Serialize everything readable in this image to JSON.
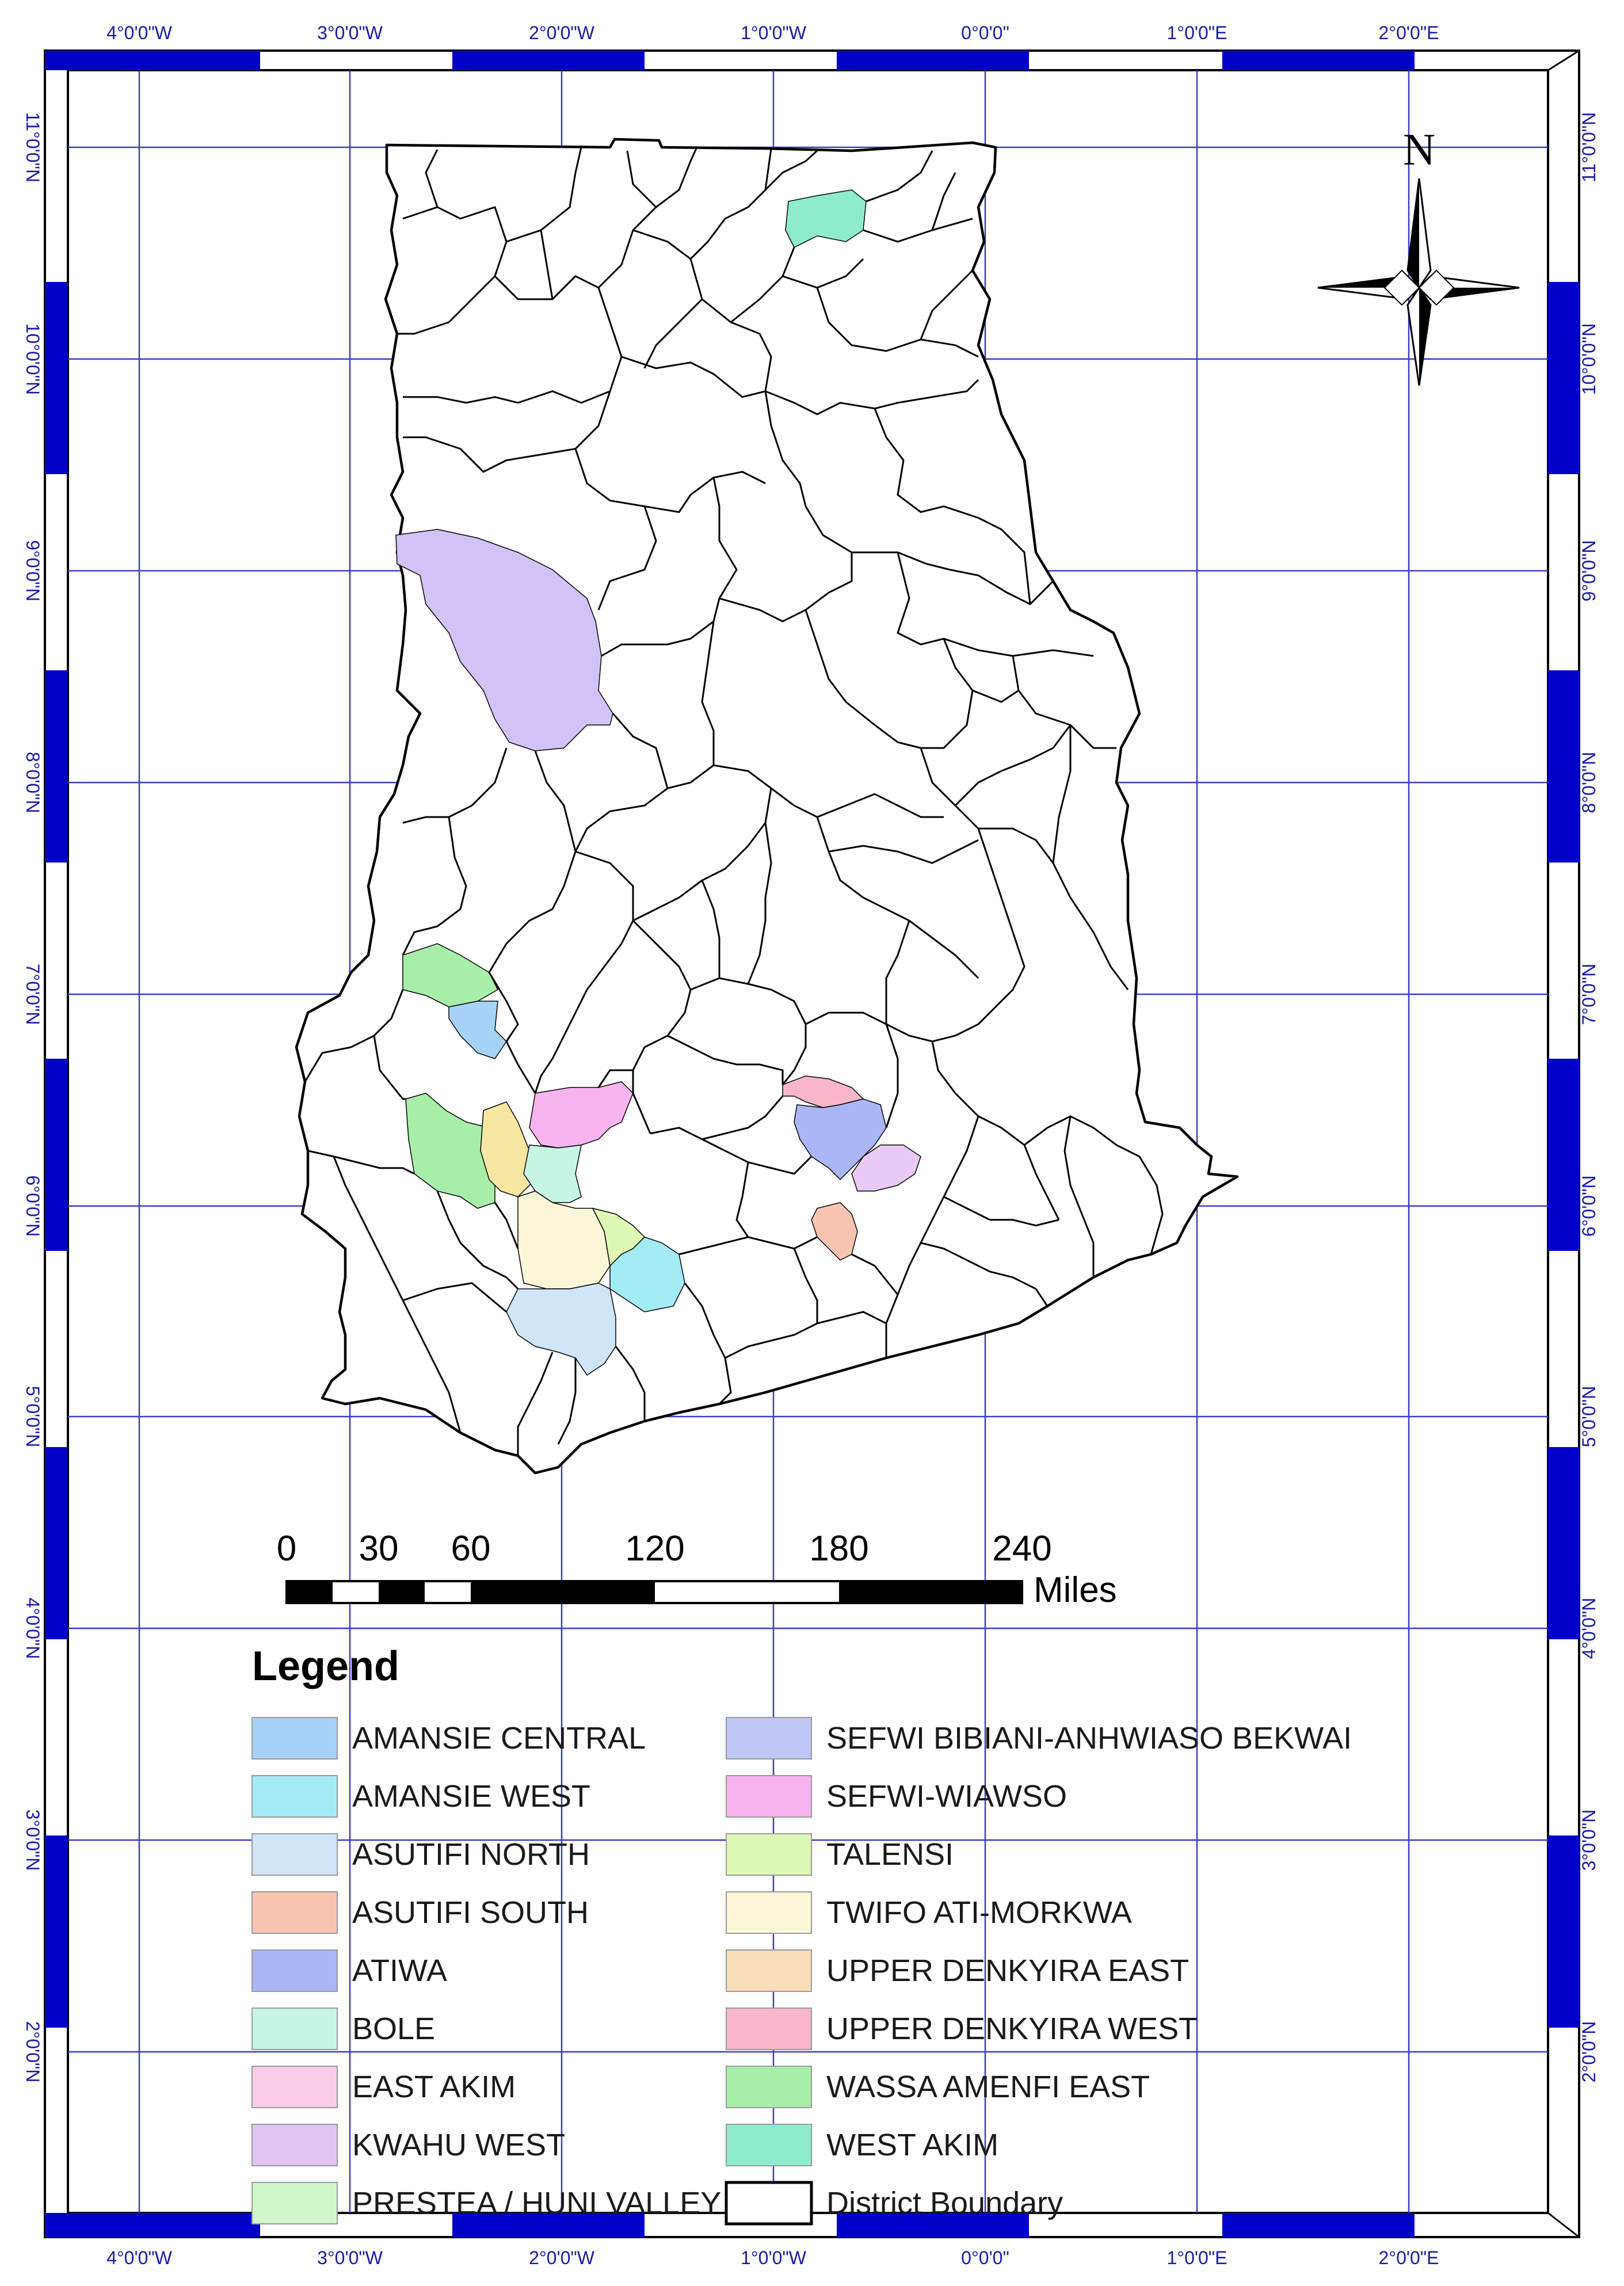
{
  "map": {
    "top_labels": [
      "4°0'0\"W",
      "3°0'0\"W",
      "2°0'0\"W",
      "1°0'0\"W",
      "0°0'0\"",
      "1°0'0\"E",
      "2°0'0\"E"
    ],
    "bottom_labels": [
      "4°0'0\"W",
      "3°0'0\"W",
      "2°0'0\"W",
      "1°0'0\"W",
      "0°0'0\"",
      "1°0'0\"E",
      "2°0'0\"E"
    ],
    "right_labels": [
      "11°0'0\"N",
      "10°0'0\"N",
      "9°0'0\"N",
      "8°0'0\"N",
      "7°0'0\"N",
      "6°0'0\"N",
      "5°0'0\"N",
      "4°0'0\"N",
      "3°0'0\"N",
      "2°0'0\"N"
    ],
    "left_labels": [
      "11°0'0\"N",
      "10°0'0\"N",
      "9°0'0\"N",
      "8°0'0\"N",
      "7°0'0\"N",
      "6°0'0\"N",
      "5°0'0\"N",
      "4°0'0\"N",
      "3°0'0\"N",
      "2°0'0\"N"
    ],
    "north_label": "N",
    "scale": {
      "numbers": [
        "0",
        "30",
        "60",
        "120",
        "180",
        "240"
      ],
      "unit": "Miles"
    },
    "colors": {
      "frame": "#0000c8",
      "grid": "#3a3ac8",
      "boundary": "#000000"
    }
  },
  "legend": {
    "title": "Legend",
    "left_items": [
      {
        "label": "AMANSIE CENTRAL",
        "color": "#a6d2f7"
      },
      {
        "label": "AMANSIE WEST",
        "color": "#a3ecf6"
      },
      {
        "label": "ASUTIFI NORTH",
        "color": "#cfe5f8"
      },
      {
        "label": "ASUTIFI SOUTH",
        "color": "#f8c4b2"
      },
      {
        "label": "ATIWA",
        "color": "#aab6f6"
      },
      {
        "label": "BOLE",
        "color": "#c6f5e4"
      },
      {
        "label": "EAST AKIM",
        "color": "#f9cde7"
      },
      {
        "label": "KWAHU WEST",
        "color": "#e4c4f4"
      },
      {
        "label": "PRESTEA / HUNI VALLEY",
        "color": "#cff7c9"
      }
    ],
    "right_items": [
      {
        "label": "SEFWI BIBIANI-ANHWIASO BEKWAI",
        "color": "#c0c6f6"
      },
      {
        "label": "SEFWI-WIAWSO",
        "color": "#f8b4ee"
      },
      {
        "label": "TALENSI",
        "color": "#ddf8b5"
      },
      {
        "label": "TWIFO ATI-MORKWA",
        "color": "#fbf6d8"
      },
      {
        "label": "UPPER DENKYIRA EAST",
        "color": "#f8ddbb"
      },
      {
        "label": "UPPER DENKYIRA WEST",
        "color": "#f8b6c9"
      },
      {
        "label": "WASSA AMENFI EAST",
        "color": "#a7efa9"
      },
      {
        "label": "WEST AKIM",
        "color": "#8eeccd"
      },
      {
        "label": "District Boundary",
        "color": "#ffffff"
      }
    ]
  }
}
